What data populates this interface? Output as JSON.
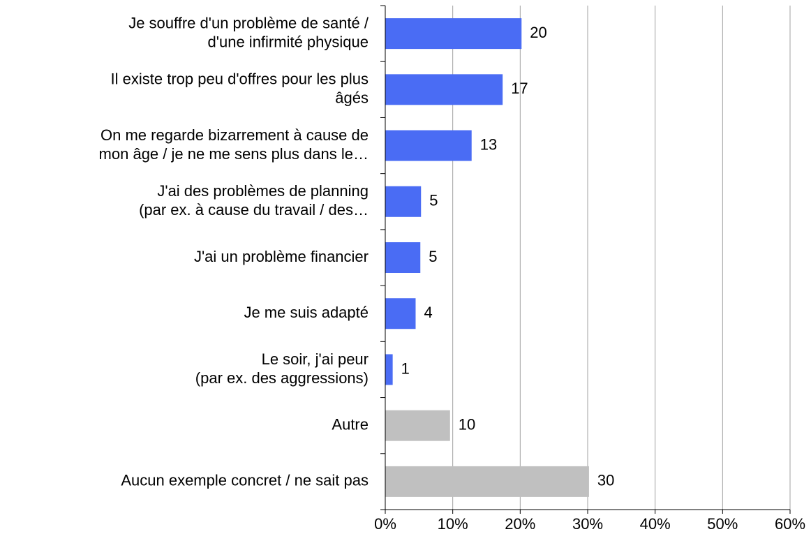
{
  "chart_data": {
    "type": "bar",
    "orientation": "horizontal",
    "categories": [
      [
        "Je souffre d'un problème de santé /",
        "d'une infirmité physique"
      ],
      [
        "Il existe trop peu d'offres pour les plus",
        "âgés"
      ],
      [
        "On me regarde bizarrement à cause de",
        "mon âge / je ne me sens plus dans le…"
      ],
      [
        "J'ai des problèmes de planning",
        "(par ex. à cause du travail / des…"
      ],
      [
        "J'ai un problème financier"
      ],
      [
        "Je me suis adapté"
      ],
      [
        "Le soir, j'ai peur",
        "(par ex. des aggressions)"
      ],
      [
        "Autre"
      ],
      [
        "Aucun exemple concret / ne sait pas"
      ]
    ],
    "values": [
      20.2,
      17.4,
      12.8,
      5.3,
      5.2,
      4.5,
      1.1,
      9.6,
      30.2
    ],
    "value_labels": [
      "20",
      "17",
      "13",
      "5",
      "5",
      "4",
      "1",
      "10",
      "30"
    ],
    "colors": [
      "#4a6cf4",
      "#4a6cf4",
      "#4a6cf4",
      "#4a6cf4",
      "#4a6cf4",
      "#4a6cf4",
      "#4a6cf4",
      "#c0c0c0",
      "#c0c0c0"
    ],
    "xlim": [
      0,
      60
    ],
    "xticks": [
      {
        "value": 0,
        "label": "0%"
      },
      {
        "value": 10,
        "label": "10%"
      },
      {
        "value": 20,
        "label": "20%"
      },
      {
        "value": 30,
        "label": "30%"
      },
      {
        "value": 40,
        "label": "40%"
      },
      {
        "value": 50,
        "label": "50%"
      },
      {
        "value": 60,
        "label": "60%"
      }
    ],
    "grid": true
  }
}
